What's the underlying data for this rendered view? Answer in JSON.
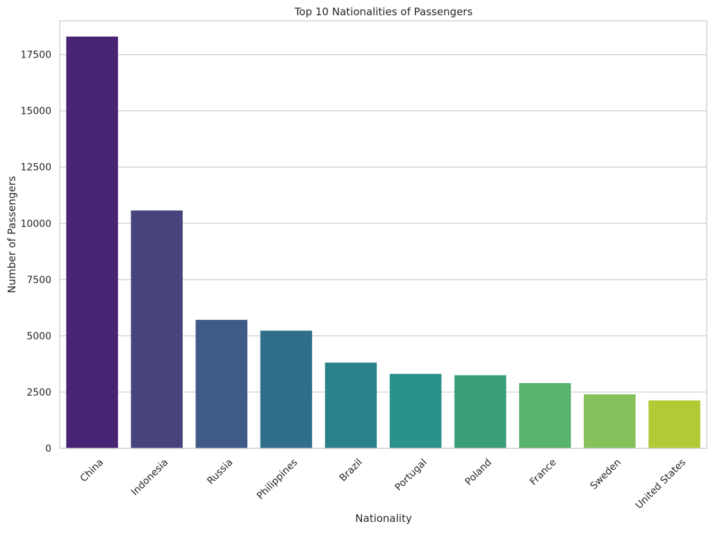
{
  "chart_data": {
    "type": "bar",
    "title": "Top 10 Nationalities of Passengers",
    "xlabel": "Nationality",
    "ylabel": "Number of Passengers",
    "categories": [
      "China",
      "Indonesia",
      "Russia",
      "Philippines",
      "Brazil",
      "Portugal",
      "Poland",
      "France",
      "Sweden",
      "United States"
    ],
    "values": [
      18300,
      10570,
      5710,
      5230,
      3810,
      3310,
      3250,
      2900,
      2400,
      2130
    ],
    "ylim": [
      0,
      19000
    ],
    "yticks": [
      0,
      2500,
      5000,
      7500,
      10000,
      12500,
      15000,
      17500
    ],
    "ytick_labels": [
      "0",
      "2500",
      "5000",
      "7500",
      "10000",
      "12500",
      "15000",
      "17500"
    ],
    "grid": true,
    "x_tick_rotation_deg": 45,
    "colors": [
      "#482475",
      "#46437d",
      "#3f5a87",
      "#306e8b",
      "#2a818c",
      "#2a928a",
      "#3a9e79",
      "#58b36d",
      "#85c25b",
      "#b4c936"
    ]
  }
}
